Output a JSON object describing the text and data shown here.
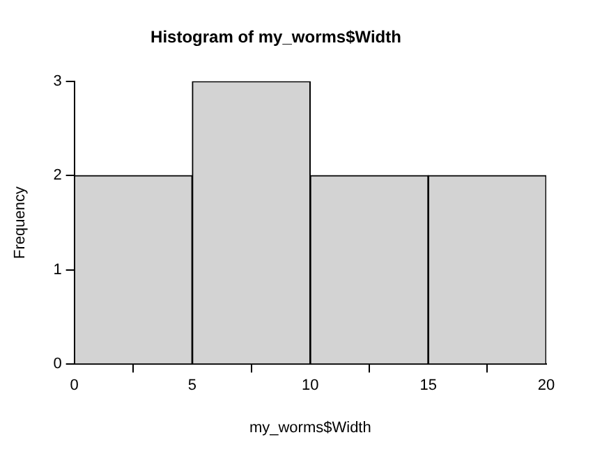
{
  "chart_data": {
    "type": "histogram",
    "title": "Histogram of my_worms$Width",
    "xlabel": "my_worms$Width",
    "ylabel": "Frequency",
    "bins": [
      0,
      5,
      10,
      15,
      20
    ],
    "values": [
      2,
      3,
      2,
      2
    ],
    "color": "#d3d3d3",
    "xlim": [
      0,
      20
    ],
    "xticks": [
      0,
      5,
      10,
      15,
      20
    ],
    "ylim": [
      0,
      3
    ],
    "yticks": [
      0,
      1,
      2,
      3
    ],
    "grid": false,
    "legend": false
  }
}
